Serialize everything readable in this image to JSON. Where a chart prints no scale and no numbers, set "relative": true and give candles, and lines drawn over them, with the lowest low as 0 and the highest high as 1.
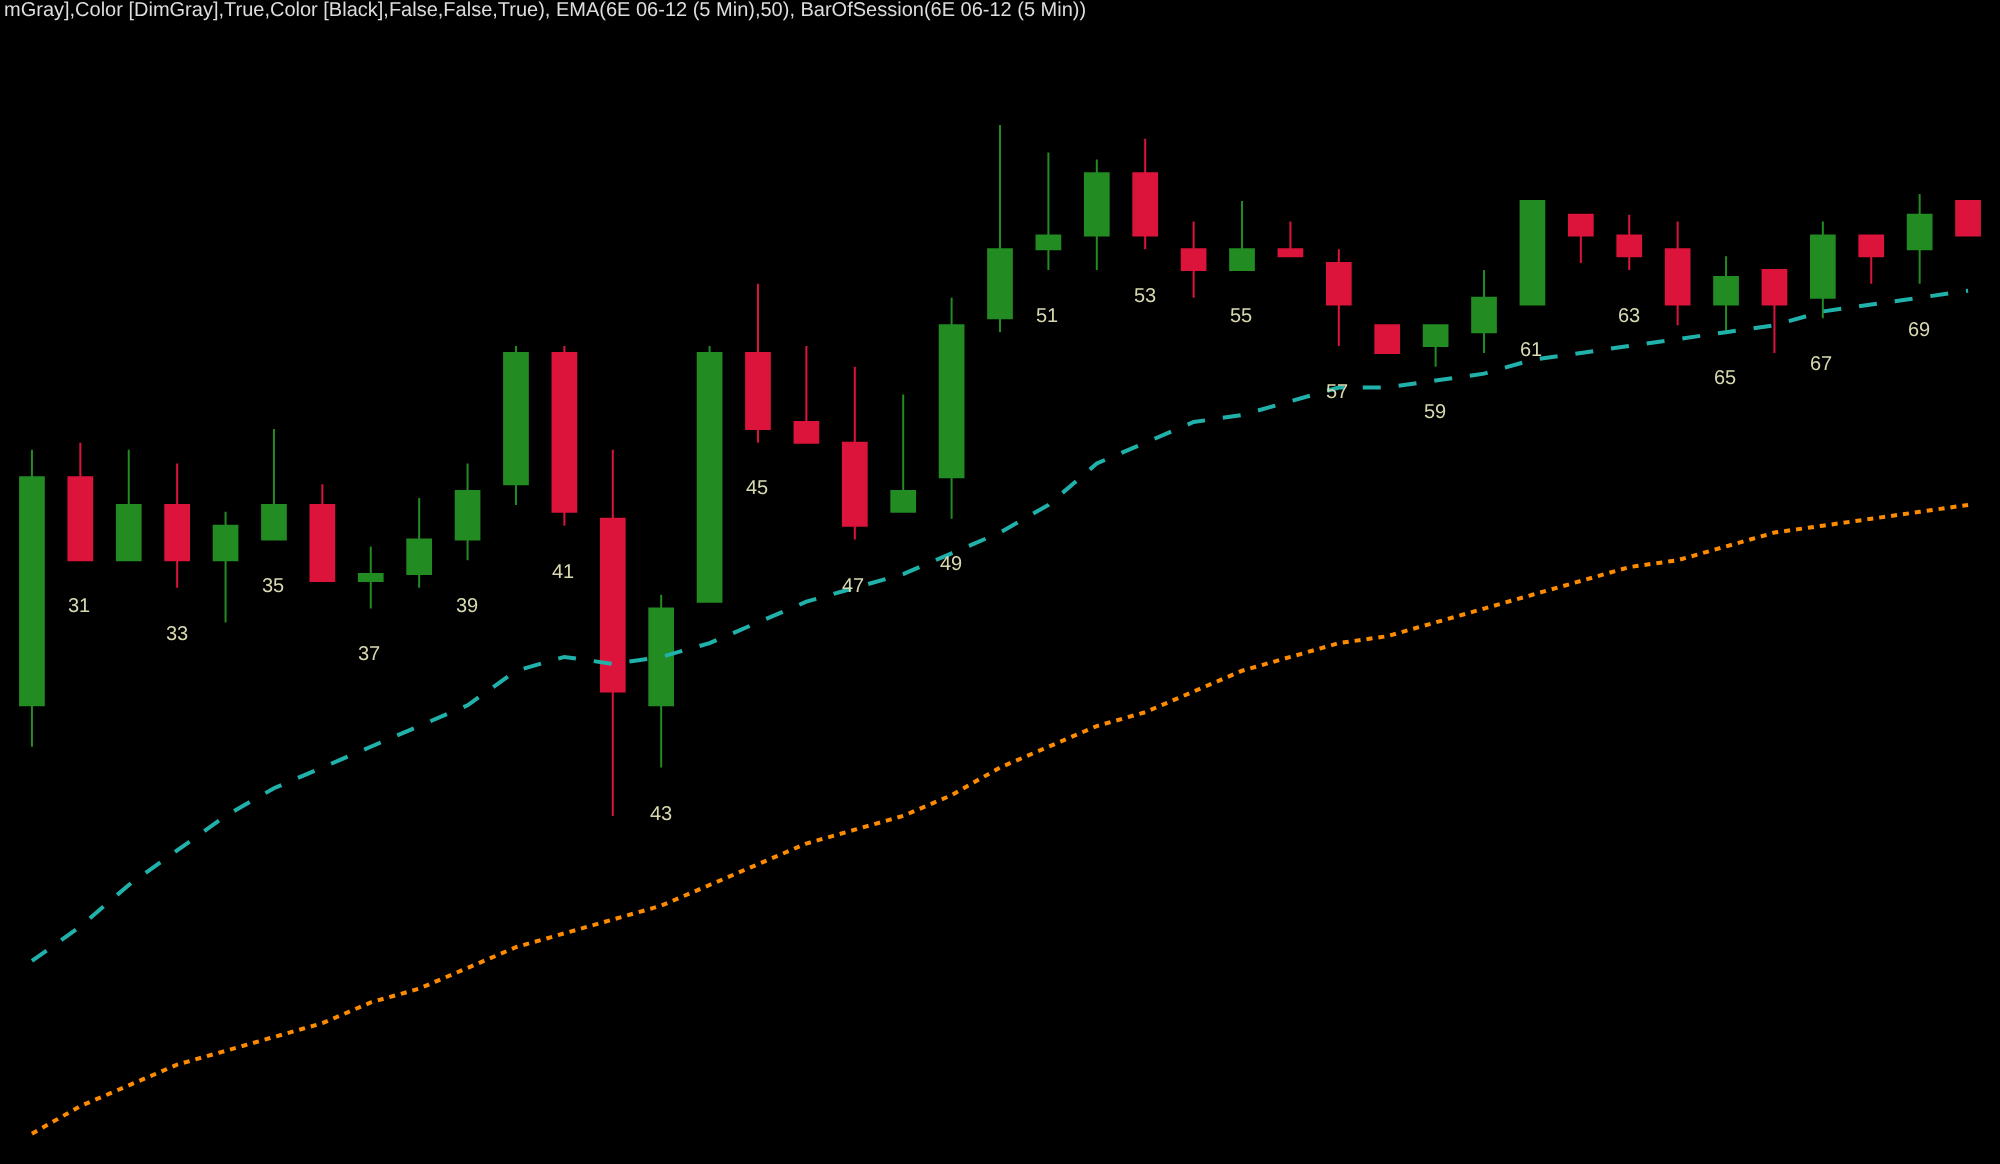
{
  "chart_data": {
    "type": "candlestick",
    "title": "mGray],Color [DimGray],True,Color [Black],False,False,True), EMA(6E 06-12 (5 Min),50), BarOfSession(6E 06-12 (5 Min))",
    "relative": true,
    "categories": [
      null,
      "31",
      null,
      "33",
      null,
      "35",
      null,
      "37",
      null,
      "39",
      null,
      "41",
      null,
      "43",
      null,
      "45",
      null,
      "47",
      null,
      "49",
      null,
      "51",
      null,
      "53",
      null,
      "55",
      null,
      "57",
      null,
      "59",
      null,
      "61",
      null,
      "63",
      null,
      "65",
      null,
      "67",
      null,
      "69",
      null
    ],
    "ohlc": [
      [
        0.16,
        0.53,
        0.1,
        0.49
      ],
      [
        0.49,
        0.54,
        0.37,
        0.37
      ],
      [
        0.37,
        0.53,
        0.37,
        0.45
      ],
      [
        0.45,
        0.51,
        0.33,
        0.37
      ],
      [
        0.37,
        0.44,
        0.28,
        0.42
      ],
      [
        0.4,
        0.56,
        0.4,
        0.45
      ],
      [
        0.45,
        0.48,
        0.34,
        0.34
      ],
      [
        0.34,
        0.39,
        0.3,
        0.35
      ],
      [
        0.35,
        0.46,
        0.33,
        0.4
      ],
      [
        0.4,
        0.51,
        0.37,
        0.47
      ],
      [
        0.48,
        0.68,
        0.45,
        0.67
      ],
      [
        0.67,
        0.68,
        0.42,
        0.44
      ],
      [
        0.43,
        0.53,
        0,
        0.18
      ],
      [
        0.16,
        0.32,
        0.07,
        0.3
      ],
      [
        0.31,
        0.68,
        0.31,
        0.67
      ],
      [
        0.67,
        0.77,
        0.54,
        0.56
      ],
      [
        0.57,
        0.68,
        0.54,
        0.54
      ],
      [
        0.54,
        0.65,
        0.4,
        0.42
      ],
      [
        0.44,
        0.61,
        0.44,
        0.47
      ],
      [
        0.49,
        0.75,
        0.43,
        0.71
      ],
      [
        0.72,
        1,
        0.7,
        0.82
      ],
      [
        0.82,
        0.96,
        0.79,
        0.84
      ],
      [
        0.84,
        0.95,
        0.79,
        0.93
      ],
      [
        0.93,
        0.98,
        0.82,
        0.84
      ],
      [
        0.82,
        0.86,
        0.75,
        0.79
      ],
      [
        0.79,
        0.89,
        0.79,
        0.82
      ],
      [
        0.82,
        0.86,
        0.81,
        0.81
      ],
      [
        0.8,
        0.82,
        0.68,
        0.74
      ],
      [
        0.71,
        0.71,
        0.67,
        0.67
      ],
      [
        0.68,
        0.71,
        0.65,
        0.71
      ],
      [
        0.7,
        0.79,
        0.67,
        0.75
      ],
      [
        0.74,
        0.89,
        0.74,
        0.89
      ],
      [
        0.87,
        0.87,
        0.8,
        0.84
      ],
      [
        0.84,
        0.87,
        0.79,
        0.81
      ],
      [
        0.82,
        0.86,
        0.71,
        0.74
      ],
      [
        0.74,
        0.81,
        0.7,
        0.78
      ],
      [
        0.79,
        0.79,
        0.67,
        0.74
      ],
      [
        0.75,
        0.86,
        0.72,
        0.84
      ],
      [
        0.84,
        0.84,
        0.77,
        0.81
      ],
      [
        0.82,
        0.9,
        0.77,
        0.87
      ],
      [
        0.89,
        0.89,
        0.84,
        0.84
      ]
    ],
    "colors": [
      "#228b22",
      "#dc143c",
      "#228b22",
      "#dc143c",
      "#228b22",
      "#228b22",
      "#dc143c",
      "#228b22",
      "#228b22",
      "#228b22",
      "#228b22",
      "#dc143c",
      "#dc143c",
      "#228b22",
      "#228b22",
      "#dc143c",
      "#dc143c",
      "#dc143c",
      "#228b22",
      "#228b22",
      "#228b22",
      "#228b22",
      "#228b22",
      "#dc143c",
      "#dc143c",
      "#228b22",
      "#dc143c",
      "#dc143c",
      "#dc143c",
      "#228b22",
      "#228b22",
      "#228b22",
      "#dc143c",
      "#dc143c",
      "#dc143c",
      "#228b22",
      "#dc143c",
      "#228b22",
      "#dc143c",
      "#228b22",
      "#dc143c"
    ],
    "series": [
      {
        "type": "line",
        "color": "#20b2aa",
        "line_style": "dashed",
        "values": [
          -0.21,
          -0.16,
          -0.1,
          -0.05,
          0,
          0.04,
          0.07,
          0.1,
          0.13,
          0.16,
          0.21,
          0.23,
          0.22,
          0.23,
          0.25,
          0.28,
          0.31,
          0.33,
          0.35,
          0.38,
          0.41,
          0.45,
          0.51,
          0.54,
          0.57,
          0.58,
          0.6,
          0.62,
          0.62,
          0.63,
          0.64,
          0.66,
          0.67,
          0.68,
          0.69,
          0.7,
          0.71,
          0.73,
          0.74,
          0.75,
          0.76
        ]
      },
      {
        "type": "line",
        "color": "#ff8c00",
        "line_style": "dotted",
        "values": [
          -0.46,
          -0.42,
          -0.39,
          -0.36,
          -0.34,
          -0.32,
          -0.3,
          -0.27,
          -0.25,
          -0.22,
          -0.19,
          -0.17,
          -0.15,
          -0.13,
          -0.1,
          -0.07,
          -0.04,
          -0.02,
          0,
          0.03,
          0.07,
          0.1,
          0.13,
          0.15,
          0.18,
          0.21,
          0.23,
          0.25,
          0.26,
          0.28,
          0.3,
          0.32,
          0.34,
          0.36,
          0.37,
          0.39,
          0.41,
          0.42,
          0.43,
          0.44,
          0.45
        ]
      }
    ]
  }
}
